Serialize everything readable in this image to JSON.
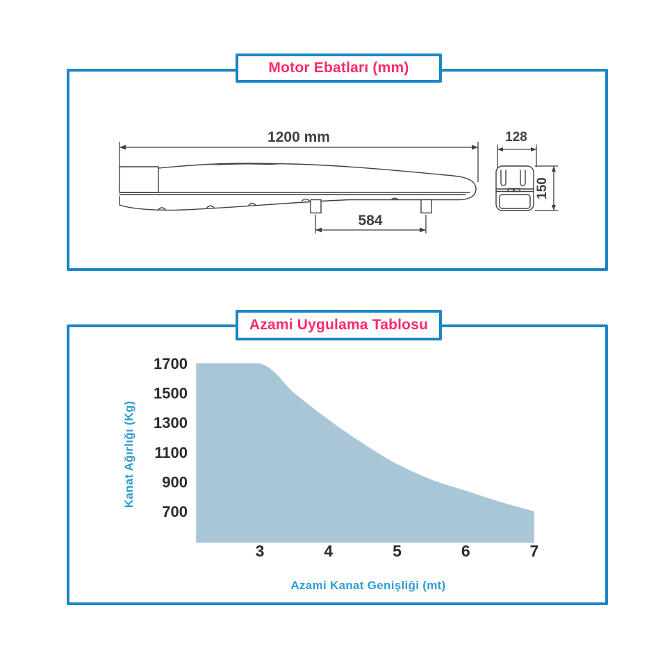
{
  "colors": {
    "border_blue": "#1b86c5",
    "title_pink": "#fa2a6d",
    "axis_blue": "#2f9cd4",
    "area_fill": "#a9c6d6",
    "drawing_ink": "#3f3f3f"
  },
  "panel_motor": {
    "title": "Motor Ebatları (mm)",
    "dims": {
      "length": "1200 mm",
      "foot_spacing": "584",
      "width": "128",
      "height": "150"
    }
  },
  "panel_chart": {
    "title": "Azami Uygulama Tablosu"
  },
  "chart_data": {
    "type": "area",
    "title": "Azami Uygulama Tablosu",
    "xlabel": "Azami Kanat Genişliği (mt)",
    "ylabel": "Kanat Ağırlığı (Kg)",
    "xticks": [
      3,
      4,
      5,
      6,
      7
    ],
    "yticks": [
      1700,
      1500,
      1300,
      1100,
      900,
      700
    ],
    "xlim": [
      2.07,
      7.0
    ],
    "ylim": [
      480,
      1700
    ],
    "grid": false,
    "legend": null,
    "fill_color": "#a9c6d6",
    "points": [
      [
        2.07,
        1700
      ],
      [
        3,
        1700
      ],
      [
        3.5,
        1500
      ],
      [
        4,
        1320
      ],
      [
        4.5,
        1160
      ],
      [
        5,
        1020
      ],
      [
        5.5,
        915
      ],
      [
        6,
        840
      ],
      [
        6.5,
        765
      ],
      [
        7,
        700
      ]
    ]
  }
}
